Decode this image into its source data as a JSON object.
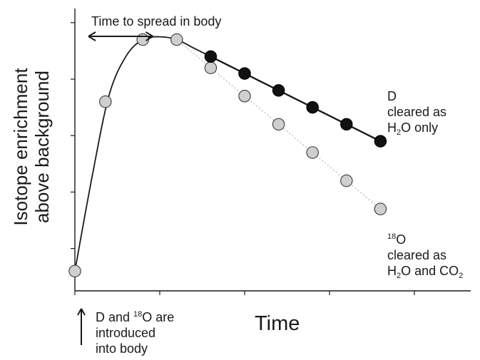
{
  "chart_data": {
    "type": "line",
    "title": "",
    "xlabel": "Time",
    "ylabel": [
      "Isotope enrichment",
      "above background"
    ],
    "xlim": [
      0,
      10
    ],
    "ylim": [
      0,
      10
    ],
    "x_ticks": [
      0,
      2.5,
      5,
      7.5,
      10
    ],
    "y_ticks": [
      1.5,
      3.5,
      5.5,
      7.5,
      9.5
    ],
    "tick_labels_shown": false,
    "grid": false,
    "series": [
      {
        "name": "D",
        "marker": "filled-circle",
        "color": "#111111",
        "line": "solid",
        "x": [
          0,
          0.9,
          2.0,
          3.0,
          4.0,
          5.0,
          6.0,
          7.0,
          8.0,
          9.0
        ],
        "y": [
          0.7,
          6.7,
          8.9,
          8.9,
          8.3,
          7.7,
          7.1,
          6.5,
          5.9,
          5.3
        ],
        "fitted_curve_x": [
          0,
          0.5,
          1.0,
          1.5,
          2.0,
          2.5,
          3.0,
          3.5,
          4.0,
          5.0,
          6.0,
          7.0,
          8.0,
          9.0
        ],
        "fitted_curve_y": [
          0.7,
          4.0,
          6.9,
          8.3,
          8.9,
          9.0,
          8.9,
          8.6,
          8.3,
          7.7,
          7.1,
          6.5,
          5.9,
          5.3
        ]
      },
      {
        "name": "18O",
        "marker": "grey-circle",
        "color": "#cccccc",
        "line": "dotted",
        "x": [
          0,
          0.9,
          2.0,
          3.0,
          4.0,
          5.0,
          6.0,
          7.0,
          8.0,
          9.0
        ],
        "y": [
          0.7,
          6.7,
          8.9,
          8.9,
          7.9,
          6.9,
          5.9,
          4.9,
          3.9,
          2.9
        ]
      }
    ],
    "annotations": {
      "spread_label": "Time to spread in body",
      "spread_arrow_x": [
        0.4,
        2.3
      ],
      "d_note": [
        "D",
        "cleared as",
        "H",
        "2",
        "O only"
      ],
      "o_note": [
        "18",
        "O",
        "cleared as",
        "H",
        "2",
        "O and CO",
        "2"
      ],
      "intro_note": [
        "D and ",
        "18",
        "O are",
        "introduced",
        "into body"
      ]
    }
  }
}
